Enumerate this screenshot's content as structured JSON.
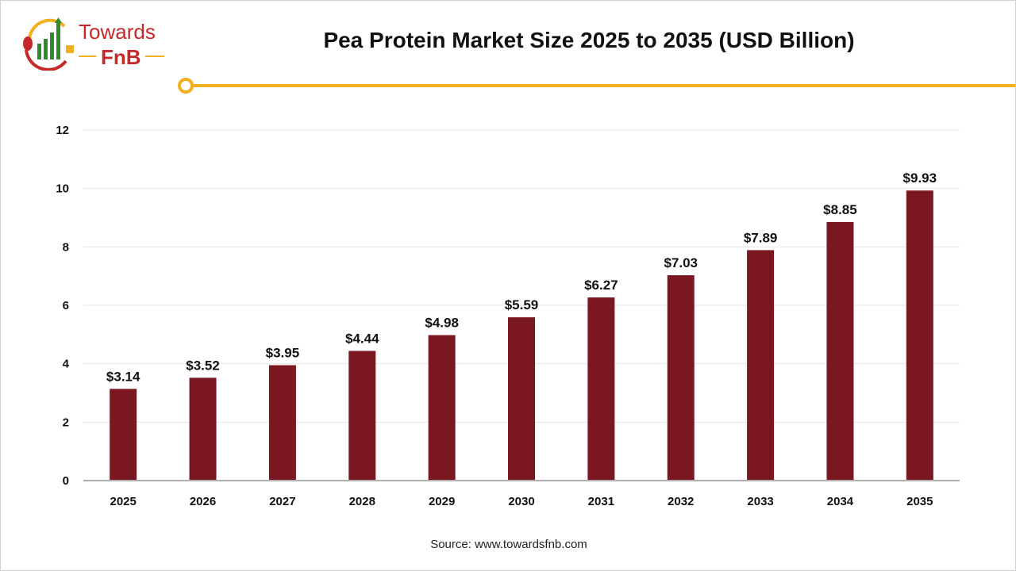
{
  "logo": {
    "text_top": "Towards",
    "text_bottom": "FnB"
  },
  "header": {
    "title": "Pea Protein Market Size 2025 to 2035 (USD Billion)",
    "accent_color": "#f2b01e"
  },
  "source": "Source: www.towardsfnb.com",
  "chart_data": {
    "type": "bar",
    "title": "Pea Protein Market Size 2025 to 2035 (USD Billion)",
    "categories": [
      "2025",
      "2026",
      "2027",
      "2028",
      "2029",
      "2030",
      "2031",
      "2032",
      "2033",
      "2034",
      "2035"
    ],
    "values": [
      3.14,
      3.52,
      3.95,
      4.44,
      4.98,
      5.59,
      6.27,
      7.03,
      7.89,
      8.85,
      9.93
    ],
    "data_labels": [
      "$3.14",
      "$3.52",
      "$3.95",
      "$4.44",
      "$4.98",
      "$5.59",
      "$6.27",
      "$7.03",
      "$7.89",
      "$8.85",
      "$9.93"
    ],
    "yticks": [
      0,
      2,
      4,
      6,
      8,
      10,
      12
    ],
    "ylim": [
      0,
      12
    ],
    "grid": true,
    "bar_color": "#7b1721",
    "xlabel": "",
    "ylabel": ""
  }
}
